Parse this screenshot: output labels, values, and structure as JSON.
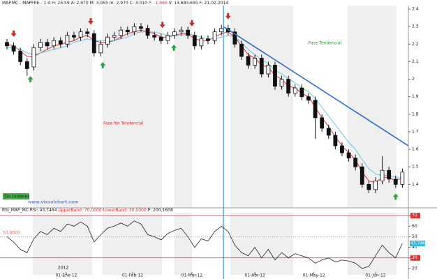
{
  "header": {
    "price_title": "MAP.MC - MAPFRE - 1 d H: 23:59 A: 2,970 M: 3,055 m: 2,970 C: 3,010",
    "price_change": "P: -1,960",
    "price_rest": "V: 13,683,655 F: 21-02-2014",
    "rsi_title": "RSI_MAP_MC RSI: 43,7464",
    "upper_band": "UpperBand: 70,0000",
    "lower_band": "LowerBand: 30,0000",
    "rsi_rest": "P: 200,1608"
  },
  "labels": {
    "trend": "Fase Tendencial",
    "no_trend": "Fase No Tendencial",
    "orders": "Sin Ordenes",
    "site": "www.visualchart.com",
    "mid_band": "50,0000",
    "year": "2012"
  },
  "chart_data": [
    {
      "type": "candlestick",
      "xlim": [
        -1.04,
        59.9
      ],
      "ylim": [
        1.27,
        2.42
      ],
      "yticks": [
        1.4,
        1.5,
        1.6,
        1.7,
        1.8,
        1.9,
        2,
        2.1,
        2.2,
        2.3,
        2.4
      ],
      "open": [
        2.21,
        2.19,
        2.16,
        2.1,
        2.07,
        2.18,
        2.21,
        2.19,
        2.22,
        2.2,
        2.25,
        2.24,
        2.27,
        2.26,
        2.15,
        2.2,
        2.24,
        2.25,
        2.28,
        2.27,
        2.3,
        2.29,
        2.25,
        2.24,
        2.22,
        2.25,
        2.27,
        2.28,
        2.25,
        2.19,
        2.23,
        2.22,
        2.27,
        2.29,
        2.27,
        2.2,
        2.13,
        2.08,
        2.12,
        2.03,
        2.08,
        1.96,
        2.0,
        1.92,
        1.95,
        1.9,
        1.88,
        1.78,
        1.72,
        1.68,
        1.62,
        1.58,
        1.55,
        1.5,
        1.4,
        1.37,
        1.42,
        1.48,
        1.43,
        1.4
      ],
      "high": [
        2.23,
        2.21,
        2.18,
        2.12,
        2.2,
        2.23,
        2.23,
        2.24,
        2.24,
        2.27,
        2.27,
        2.29,
        2.29,
        2.28,
        2.22,
        2.26,
        2.27,
        2.3,
        2.3,
        2.32,
        2.32,
        2.31,
        2.27,
        2.26,
        2.27,
        2.29,
        2.3,
        2.3,
        2.27,
        2.25,
        2.25,
        2.29,
        2.31,
        2.31,
        2.29,
        2.22,
        2.15,
        2.14,
        2.14,
        2.1,
        2.1,
        2.02,
        2.02,
        1.97,
        1.97,
        1.92,
        1.9,
        1.8,
        1.74,
        1.7,
        1.64,
        1.6,
        1.57,
        1.52,
        1.42,
        1.44,
        1.56,
        1.5,
        1.45,
        1.49
      ],
      "low": [
        2.17,
        2.14,
        2.08,
        2.02,
        2.05,
        2.16,
        2.17,
        2.17,
        2.18,
        2.18,
        2.22,
        2.22,
        2.24,
        2.13,
        2.13,
        2.18,
        2.22,
        2.23,
        2.25,
        2.25,
        2.27,
        2.23,
        2.22,
        2.2,
        2.2,
        2.23,
        2.25,
        2.23,
        2.17,
        2.17,
        2.2,
        2.2,
        2.25,
        2.25,
        2.18,
        2.11,
        2.06,
        2.06,
        2.01,
        2.01,
        1.94,
        1.94,
        1.9,
        1.9,
        1.88,
        1.86,
        1.66,
        1.7,
        1.66,
        1.6,
        1.56,
        1.53,
        1.48,
        1.38,
        1.35,
        1.35,
        1.4,
        1.41,
        1.38,
        1.38
      ],
      "close": [
        2.19,
        2.16,
        2.1,
        2.06,
        2.18,
        2.21,
        2.19,
        2.22,
        2.2,
        2.25,
        2.24,
        2.27,
        2.26,
        2.15,
        2.2,
        2.24,
        2.25,
        2.28,
        2.27,
        2.3,
        2.29,
        2.25,
        2.24,
        2.22,
        2.25,
        2.27,
        2.28,
        2.25,
        2.19,
        2.23,
        2.22,
        2.27,
        2.29,
        2.27,
        2.2,
        2.13,
        2.08,
        2.12,
        2.03,
        2.08,
        1.96,
        2.0,
        1.92,
        1.95,
        1.9,
        1.88,
        1.78,
        1.72,
        1.68,
        1.62,
        1.58,
        1.55,
        1.5,
        1.4,
        1.37,
        1.42,
        1.48,
        1.43,
        1.4,
        1.47
      ],
      "series": [
        {
          "color": "#e03030",
          "values": [
            2.2,
            2.19,
            2.16,
            2.13,
            2.13,
            2.15,
            2.17,
            2.19,
            2.2,
            2.21,
            2.22,
            2.24,
            2.25,
            2.22,
            2.21,
            2.21,
            2.22,
            2.24,
            2.26,
            2.27,
            2.28,
            2.27,
            2.26,
            2.24,
            2.24,
            2.25,
            2.26,
            2.26,
            2.23,
            2.22,
            2.22,
            2.24,
            2.26,
            2.27,
            2.24,
            2.19,
            2.14,
            2.12,
            2.08,
            2.07,
            2.02,
            2.0,
            1.96,
            1.95,
            1.92,
            1.9,
            1.84,
            1.78,
            1.73,
            1.67,
            1.62,
            1.58,
            1.54,
            1.47,
            1.42,
            1.41,
            1.44,
            1.44,
            1.42,
            1.44
          ]
        },
        {
          "color": "#6cc6e8",
          "values": [
            2.18,
            2.18,
            2.17,
            2.15,
            2.14,
            2.15,
            2.16,
            2.17,
            2.18,
            2.19,
            2.21,
            2.22,
            2.23,
            2.22,
            2.22,
            2.22,
            2.22,
            2.23,
            2.24,
            2.26,
            2.27,
            2.27,
            2.27,
            2.26,
            2.25,
            2.25,
            2.25,
            2.26,
            2.25,
            2.24,
            2.23,
            2.23,
            2.24,
            2.25,
            2.24,
            2.21,
            2.17,
            2.14,
            2.11,
            2.09,
            2.05,
            2.03,
            2.0,
            1.98,
            1.95,
            1.93,
            1.89,
            1.84,
            1.79,
            1.74,
            1.69,
            1.64,
            1.6,
            1.54,
            1.49,
            1.46,
            1.45,
            1.45,
            1.44,
            1.44
          ]
        }
      ],
      "sell_signals": [
        1.0,
        12.5,
        23.2,
        27.6,
        33.0
      ],
      "buy_signals": [
        3.5,
        14.3,
        24.9,
        58.0
      ],
      "vline": 32.3,
      "vline_color": "#2b8fd6",
      "trend_line": {
        "x": [
          32.3,
          59.9
        ],
        "y": [
          2.3,
          1.62
        ],
        "color": "#2d6fd0"
      }
    },
    {
      "type": "line",
      "xlim": [
        -1.04,
        59.9
      ],
      "ylim": [
        14,
        76
      ],
      "yticks": [
        20,
        30,
        40,
        50,
        60,
        70
      ],
      "xticks": [
        {
          "value": 8.85,
          "label": "01-Ene-12"
        },
        {
          "value": 18.75,
          "label": "01-Feb-12"
        },
        {
          "value": 27.6,
          "label": "01-Mar-12"
        },
        {
          "value": 37,
          "label": "01-Abr-12"
        },
        {
          "value": 45.8,
          "label": "01-May-12"
        },
        {
          "value": 55,
          "label": "01-Jun-12"
        }
      ],
      "bands": [
        70,
        30
      ],
      "band_color": "#e03030",
      "mid": 50,
      "series": [
        {
          "color": "#222222",
          "values": [
            50,
            45,
            38,
            35,
            48,
            55,
            52,
            58,
            55,
            62,
            60,
            64,
            60,
            45,
            52,
            58,
            60,
            63,
            60,
            65,
            62,
            52,
            50,
            47,
            53,
            56,
            58,
            50,
            40,
            48,
            46,
            55,
            60,
            55,
            42,
            35,
            32,
            40,
            30,
            38,
            28,
            35,
            30,
            34,
            32,
            30,
            25,
            28,
            30,
            26,
            28,
            27,
            25,
            20,
            22,
            32,
            42,
            35,
            30,
            43.746
          ]
        }
      ],
      "last_label": "43,746"
    }
  ]
}
